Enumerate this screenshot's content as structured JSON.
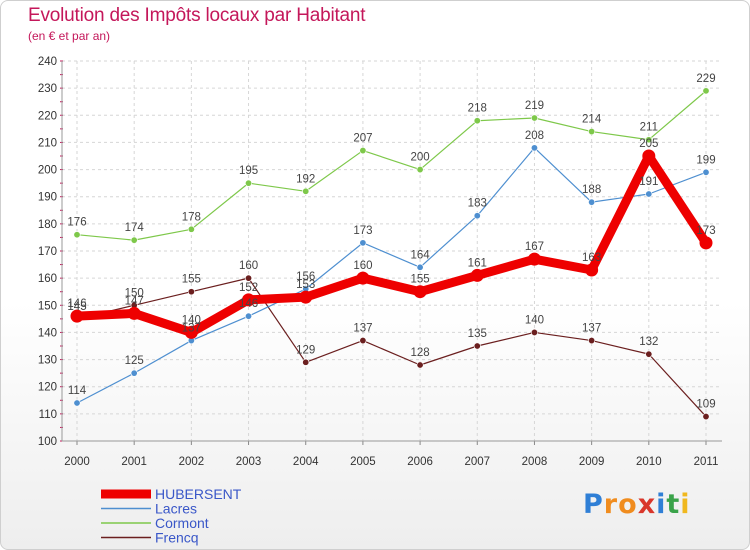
{
  "title": "Evolution des Impôts locaux par Habitant",
  "subtitle": "(en € et par an)",
  "logo": {
    "letters": [
      "P",
      "r",
      "o",
      "x",
      "i",
      "t",
      "i"
    ],
    "colors": [
      "#2f7fd6",
      "#f08c1e",
      "#f08c1e",
      "#d9362b",
      "#2f7fd6",
      "#3aa34a",
      "#f0b81e"
    ]
  },
  "chart_data": {
    "type": "line",
    "title": "Evolution des Impôts locaux par Habitant",
    "subtitle": "(en € et par an)",
    "xlabel": "",
    "ylabel": "",
    "ylim": [
      100,
      240
    ],
    "yticks": [
      100,
      110,
      120,
      130,
      140,
      150,
      160,
      170,
      180,
      190,
      200,
      210,
      220,
      230,
      240
    ],
    "categories": [
      "2000",
      "2001",
      "2002",
      "2003",
      "2004",
      "2005",
      "2006",
      "2007",
      "2008",
      "2009",
      "2010",
      "2011"
    ],
    "grid": true,
    "legend_position": "bottom-left",
    "series": [
      {
        "name": "HUBERSENT",
        "color": "#ee0000",
        "values": [
          146,
          147,
          140,
          152,
          153,
          160,
          155,
          161,
          167,
          163,
          205,
          173
        ],
        "labels": [
          "146",
          "147",
          "140",
          "152",
          "153",
          "160",
          "155",
          "161",
          "167",
          "163",
          "205",
          "173"
        ]
      },
      {
        "name": "Lacres",
        "color": "#4e8fd0",
        "values": [
          114,
          125,
          137,
          146,
          156,
          173,
          164,
          183,
          208,
          188,
          191,
          199
        ],
        "labels": [
          "114",
          "125",
          "137",
          "146",
          "156",
          "173",
          "164",
          "183",
          "208",
          "188",
          "191",
          "199"
        ]
      },
      {
        "name": "Cormont",
        "color": "#7ec84a",
        "values": [
          176,
          174,
          178,
          195,
          192,
          207,
          200,
          218,
          219,
          214,
          211,
          229
        ],
        "labels": [
          "176",
          "174",
          "178",
          "195",
          "192",
          "207",
          "200",
          "218",
          "219",
          "214",
          "211",
          "229"
        ]
      },
      {
        "name": "Frencq",
        "color": "#6b1f1f",
        "values": [
          145,
          150,
          155,
          160,
          129,
          137,
          128,
          135,
          140,
          137,
          132,
          109
        ],
        "labels": [
          "145",
          "150",
          "155",
          "160",
          "129",
          "137",
          "128",
          "135",
          "140",
          "137",
          "132",
          "109"
        ]
      }
    ]
  }
}
